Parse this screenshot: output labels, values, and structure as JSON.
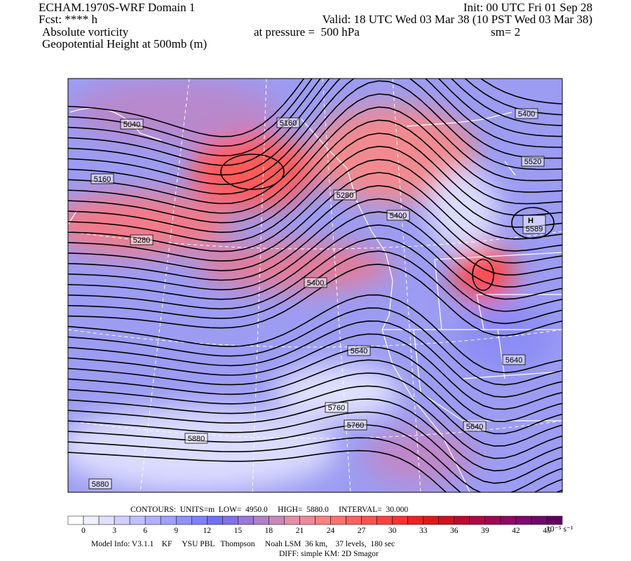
{
  "header": {
    "model": "ECHAM.1970S-WRF Domain 1",
    "init": "Init: 00 UTC Fri 01 Sep 28",
    "fcst": "Fcst: **** h",
    "valid": "Valid: 18 UTC Wed 03 Mar 38 (10 PST Wed 03 Mar 38)",
    "field": "Absolute vorticity",
    "pressure": "at pressure =  500 hPa",
    "smooth": "sm= 2",
    "contour_field": "Geopotential Height at 500mb (m)"
  },
  "contour_labels": [
    "5040",
    "5160",
    "5160",
    "5280",
    "5400",
    "5400",
    "5520",
    "5280",
    "5400",
    "5640",
    "5640",
    "5760",
    "5760",
    "5640",
    "5880",
    "5880"
  ],
  "high_center": {
    "symbol": "H",
    "value": "5589"
  },
  "contour_info": "CONTOURS:  UNITS=m  LOW=  4950.0     HIGH=  5880.0     INTERVAL=  30.000",
  "colorbar": {
    "ticks": [
      0,
      3,
      6,
      9,
      12,
      15,
      18,
      21,
      24,
      27,
      30,
      33,
      36,
      39,
      42,
      45
    ],
    "units": "10⁻⁵ s⁻¹",
    "colors": [
      "#ffffff",
      "#f0f0ff",
      "#e0e0ff",
      "#d0d0ff",
      "#c0c0ff",
      "#b0b0ff",
      "#a0a0ff",
      "#9090ff",
      "#8080ff",
      "#7070f8",
      "#8070e8",
      "#9878d8",
      "#b080c8",
      "#c888b8",
      "#e090a8",
      "#f08898",
      "#ff8080",
      "#ff7070",
      "#ff6060",
      "#ff5050",
      "#ff4040",
      "#ff3030",
      "#f02020",
      "#e01818",
      "#d01020",
      "#c00830",
      "#b00840",
      "#a00850",
      "#900860",
      "#800870",
      "#700870",
      "#600060"
    ]
  },
  "footer": {
    "model_info": "Model Info: V3.1.1    KF     YSU PBL   Thompson     Noah LSM  36 km,    37 levels,  180 sec",
    "diff": "DIFF: simple KM: 2D Smagor"
  }
}
